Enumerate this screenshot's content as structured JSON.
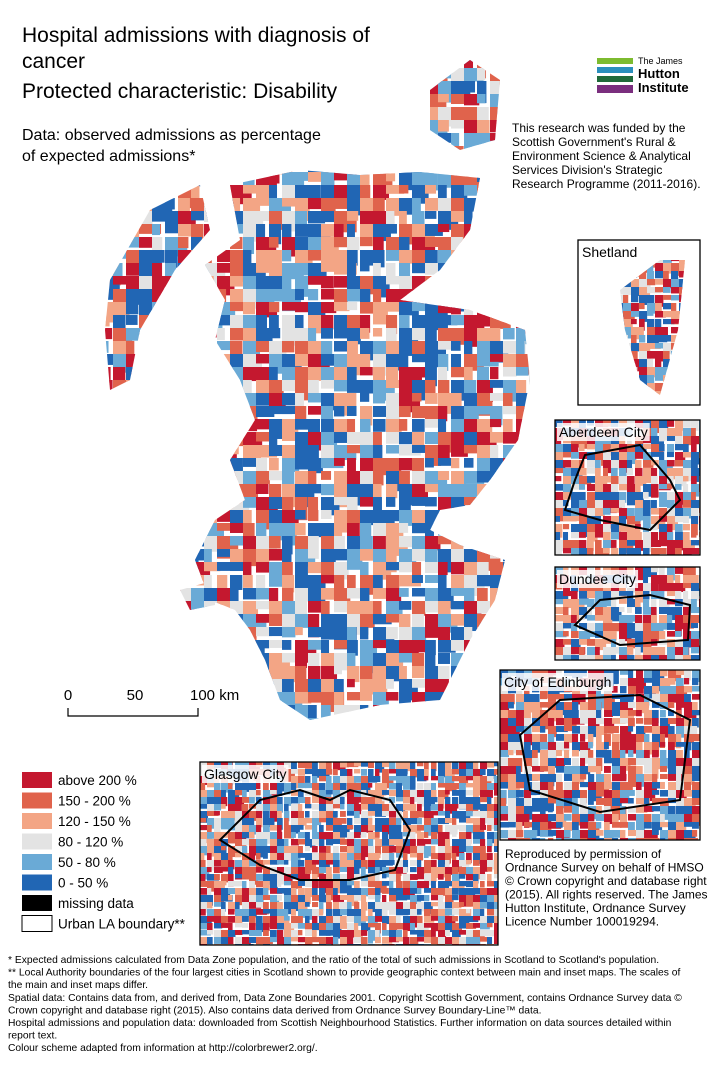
{
  "title": [
    "Hospital admissions with diagnosis of",
    "cancer",
    "Protected characteristic: Disability"
  ],
  "subtitle": [
    "Data: observed admissions as percentage",
    "of expected admissions*"
  ],
  "logo": [
    "The James",
    "Hutton",
    "Institute"
  ],
  "funding": [
    "This research was funded by the",
    "Scottish Government's Rural &",
    "Environment Science & Analytical",
    "Services Division's Strategic",
    "Research Programme (2011-2016)."
  ],
  "insets": [
    "Shetland",
    "Aberdeen City",
    "Dundee City",
    "City of Edinburgh",
    "Glasgow City"
  ],
  "scale_bar": [
    "0",
    "50",
    "100 km"
  ],
  "legend": [
    {
      "label": "above 200 %",
      "color": "#c4182f"
    },
    {
      "label": "150 - 200 %",
      "color": "#e0634c"
    },
    {
      "label": "120 - 150 %",
      "color": "#f3a585"
    },
    {
      "label": "80 - 120 %",
      "color": "#e3e3e3"
    },
    {
      "label": "50 - 80 %",
      "color": "#6aaad6"
    },
    {
      "label": "0 - 50 %",
      "color": "#2166b4"
    },
    {
      "label": "missing data",
      "color": "#000000"
    },
    {
      "label": "Urban LA boundary**",
      "color": "#ffffff"
    }
  ],
  "copyright": [
    "Reproduced by permission of",
    "Ordnance Survey on behalf of HMSO",
    "© Crown copyright and database right",
    "(2015). All rights reserved. The James",
    "Hutton Institute, Ordnance Survey",
    "Licence Number 100019294."
  ],
  "footnotes": [
    "* Expected admissions calculated from Data Zone population, and the ratio of the total of such admissions in Scotland to Scotland's population.",
    "** Local Authority boundaries of the four largest cities in Scotland shown to provide geographic context between main and inset maps. The scales of",
    "the main and inset maps differ.",
    "Spatial data: Contains data from, and derived from, Data Zone Boundaries 2001. Copyright Scottish Government, contains Ordnance Survey data ©",
    "Crown copyright and database right (2015). Also contains data derived from Ordnance Survey Boundary-Line™ data.",
    "Hospital admissions and population data: downloaded from Scottish Neighbourhood Statistics. Further information on data sources detailed within",
    "report text.",
    "Colour scheme adapted from information at http://colorbrewer2.org/."
  ]
}
